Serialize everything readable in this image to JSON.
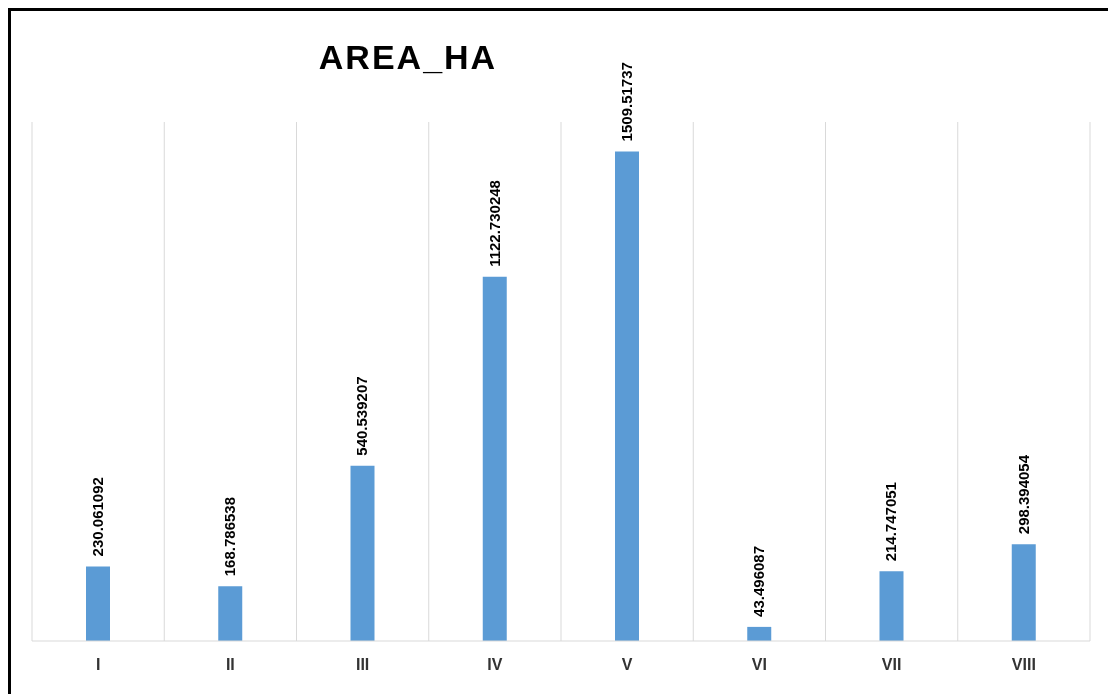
{
  "chart_data": {
    "type": "bar",
    "title": "AREA_HA",
    "categories": [
      "I",
      "II",
      "III",
      "IV",
      "V",
      "VI",
      "VII",
      "VIII"
    ],
    "values": [
      230.061092,
      168.786538,
      540.539207,
      1122.730248,
      1509.51737,
      43.496087,
      214.747051,
      298.394054
    ],
    "color": "#5b9bd5",
    "data_labels": true,
    "grid": "x"
  }
}
